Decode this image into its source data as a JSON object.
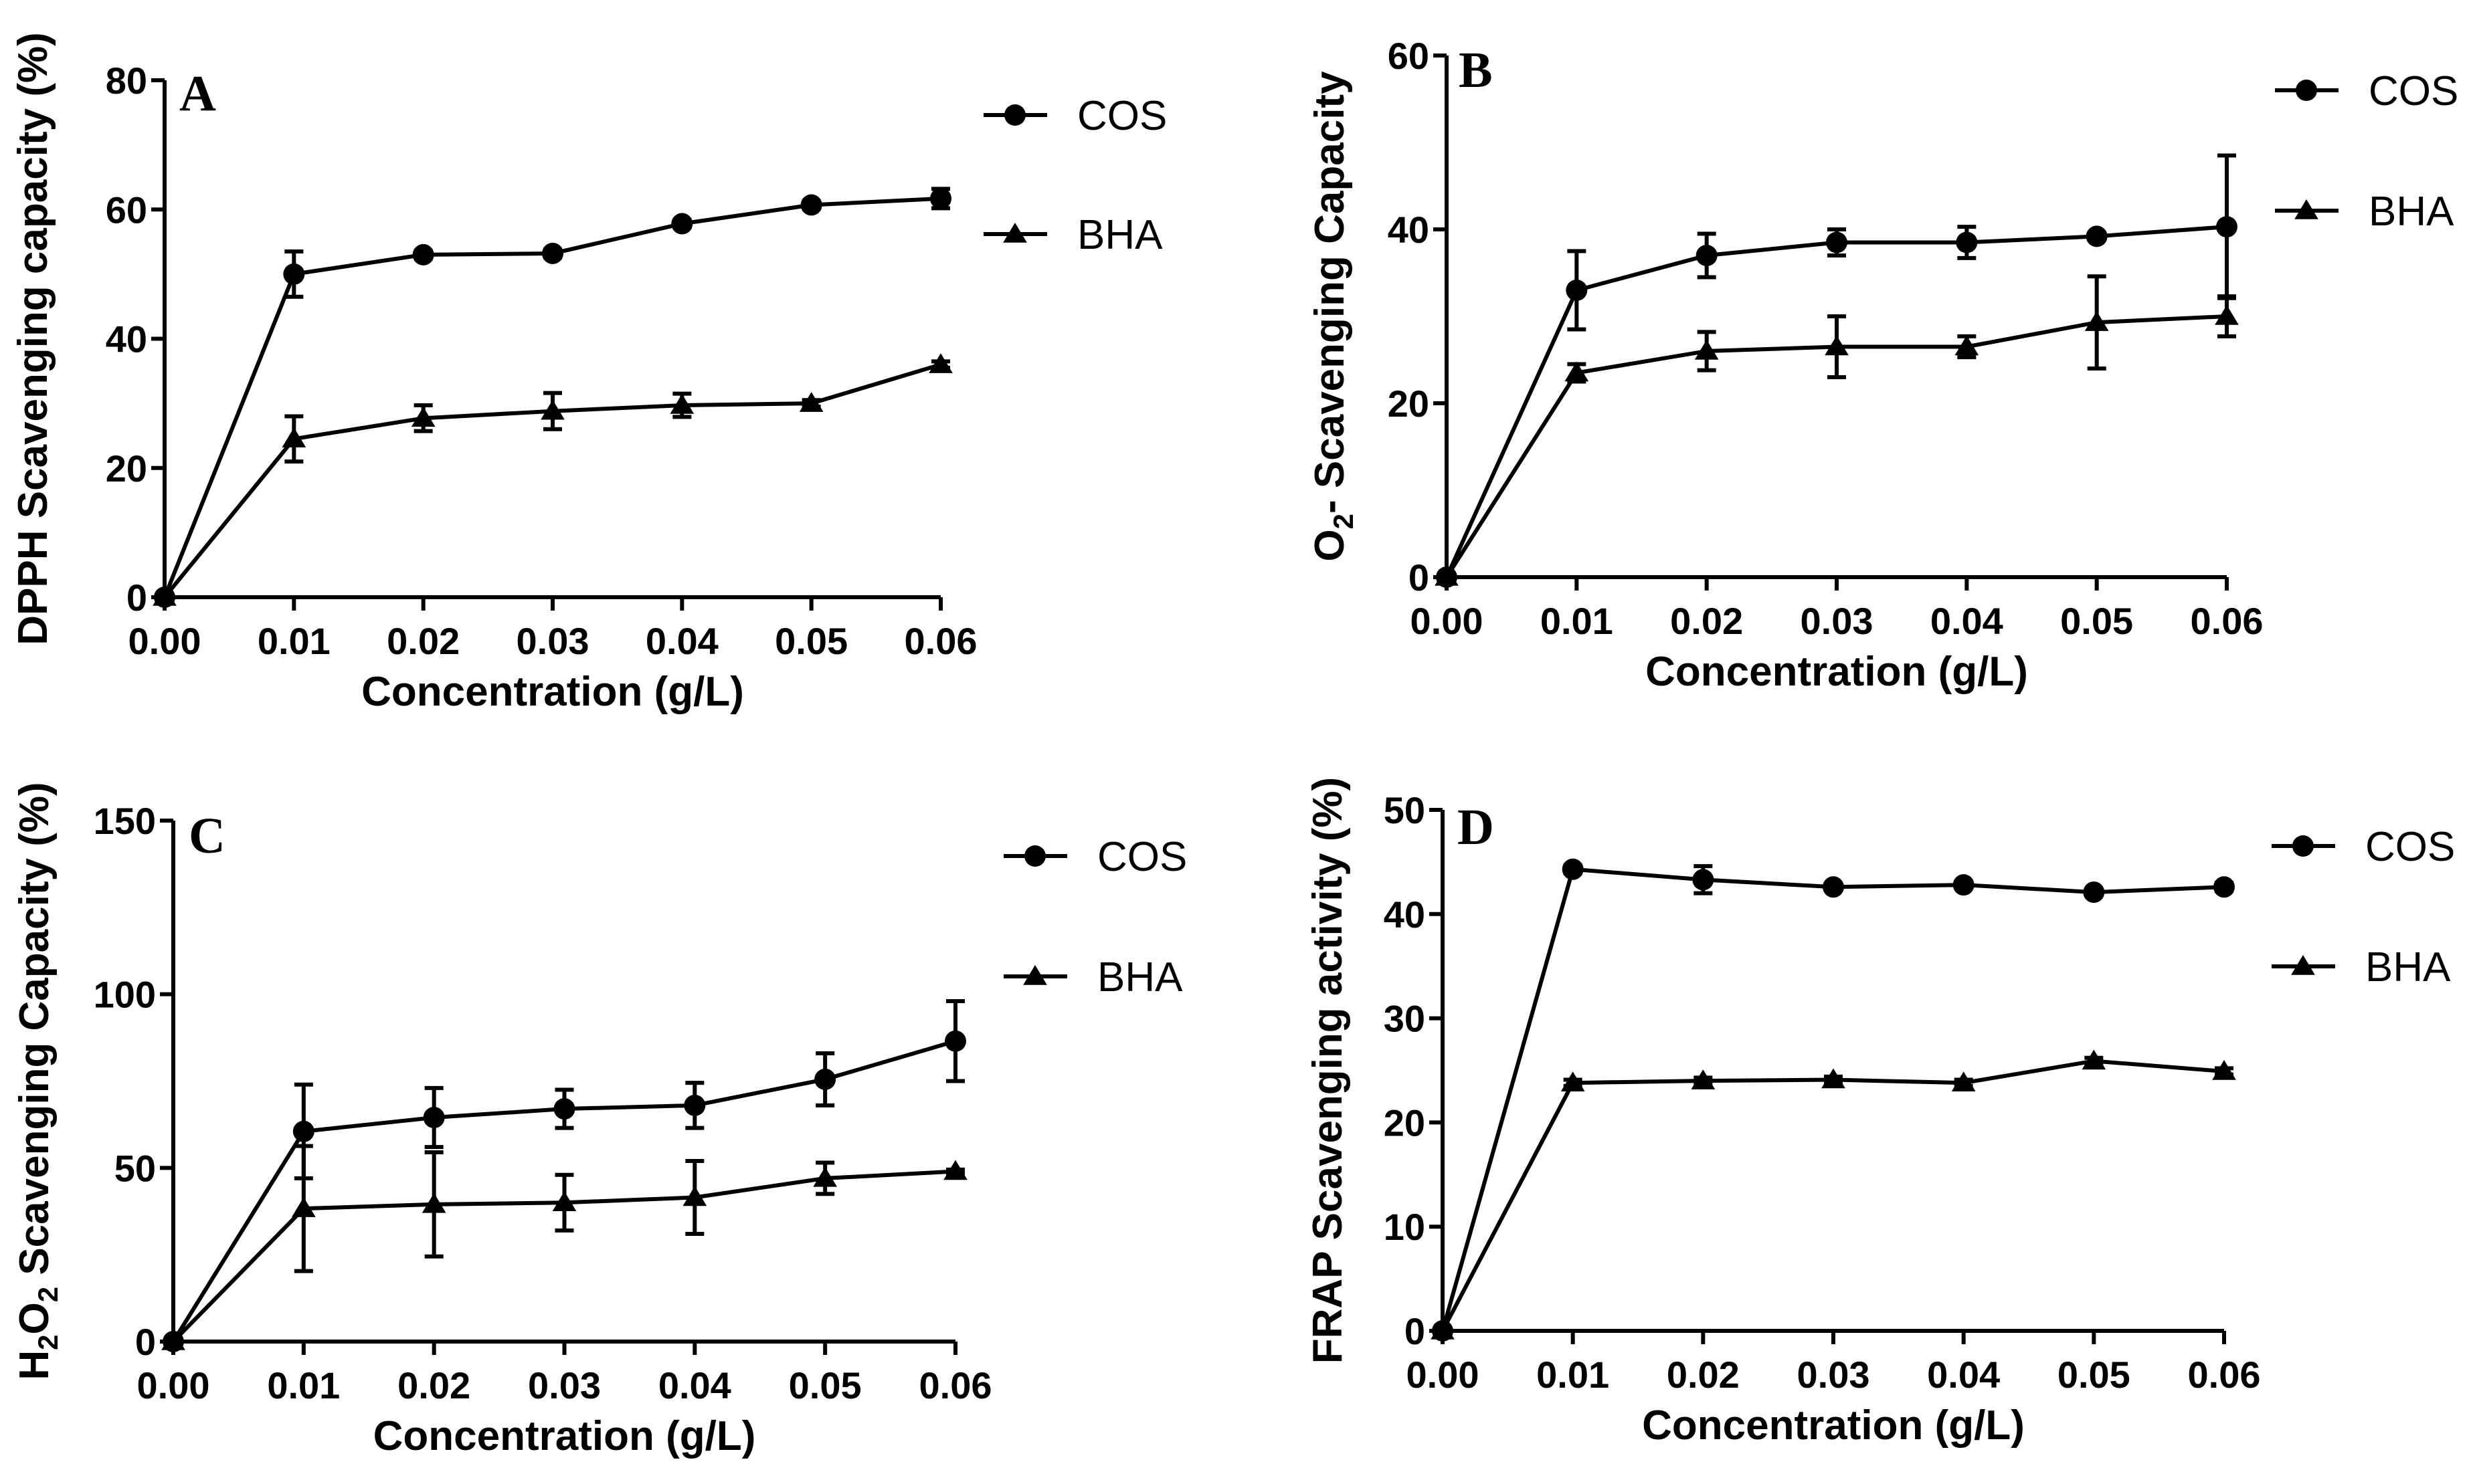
{
  "legend_labels": {
    "cos": "COS",
    "bha": "BHA"
  },
  "colors": {
    "line": "#000000",
    "background": "#ffffff"
  },
  "chart_data": [
    {
      "type": "line",
      "panel": "A",
      "title": "",
      "xlabel": "Concentration (g/L)",
      "ylabel": "DPPH Scavenging capacity (%)",
      "ylabel_parts": [
        {
          "text": "DPPH Scavenging capacity (%)",
          "sub": false
        }
      ],
      "x": [
        0.0,
        0.01,
        0.02,
        0.03,
        0.04,
        0.05,
        0.06
      ],
      "xticks": [
        "0.00",
        "0.01",
        "0.02",
        "0.03",
        "0.04",
        "0.05",
        "0.06"
      ],
      "yticks": [
        0,
        20,
        40,
        60,
        80
      ],
      "ylim": [
        0,
        80
      ],
      "legend": "top-right",
      "series": [
        {
          "name": "COS",
          "marker": "circle",
          "values": [
            0,
            50,
            53,
            53.2,
            57.8,
            60.7,
            61.7
          ],
          "err": [
            0,
            3.5,
            0.6,
            0.6,
            0.6,
            0.6,
            1.5
          ]
        },
        {
          "name": "BHA",
          "marker": "triangle",
          "values": [
            0,
            24.5,
            27.7,
            28.8,
            29.7,
            30,
            36
          ],
          "err": [
            0,
            3.5,
            2,
            2.8,
            1.8,
            0.5,
            0.5
          ]
        }
      ]
    },
    {
      "type": "line",
      "panel": "B",
      "title": "",
      "xlabel": "Concentration (g/L)",
      "ylabel": "O2- Scavenging Capacity",
      "ylabel_parts": [
        {
          "text": "O",
          "sub": false
        },
        {
          "text": "2",
          "sub": true
        },
        {
          "text": "- Scavenging Capacity",
          "sub": false
        }
      ],
      "x": [
        0.0,
        0.01,
        0.02,
        0.03,
        0.04,
        0.05,
        0.06
      ],
      "xticks": [
        "0.00",
        "0.01",
        "0.02",
        "0.03",
        "0.04",
        "0.05",
        "0.06"
      ],
      "yticks": [
        0,
        20,
        40,
        60
      ],
      "ylim": [
        0,
        60
      ],
      "legend": "top-right",
      "series": [
        {
          "name": "COS",
          "marker": "circle",
          "values": [
            0,
            33,
            37,
            38.5,
            38.5,
            39.2,
            40.3
          ],
          "err": [
            0,
            4.5,
            2.5,
            1.5,
            1.8,
            0.4,
            8.2
          ]
        },
        {
          "name": "BHA",
          "marker": "triangle",
          "values": [
            0,
            23.5,
            26,
            26.5,
            26.5,
            29.3,
            30
          ],
          "err": [
            0,
            1,
            2.2,
            3.5,
            1.2,
            5.3,
            2.3
          ]
        }
      ]
    },
    {
      "type": "line",
      "panel": "C",
      "title": "",
      "xlabel": "Concentration (g/L)",
      "ylabel": "H2O2 Scavenging Capacity (%)",
      "ylabel_parts": [
        {
          "text": "H",
          "sub": false
        },
        {
          "text": "2",
          "sub": true
        },
        {
          "text": "O",
          "sub": false
        },
        {
          "text": "2",
          "sub": true
        },
        {
          "text": " Scavenging Capacity (%)",
          "sub": false
        }
      ],
      "x": [
        0.0,
        0.01,
        0.02,
        0.03,
        0.04,
        0.05,
        0.06
      ],
      "xticks": [
        "0.00",
        "0.01",
        "0.02",
        "0.03",
        "0.04",
        "0.05",
        "0.06"
      ],
      "yticks": [
        0,
        50,
        100,
        150
      ],
      "ylim": [
        0,
        150
      ],
      "legend": "top-right",
      "series": [
        {
          "name": "COS",
          "marker": "circle",
          "values": [
            0,
            60.5,
            64.5,
            67,
            68,
            75.5,
            86.5
          ],
          "err": [
            0,
            13.5,
            8.5,
            5.5,
            6.5,
            7.5,
            11.5
          ]
        },
        {
          "name": "BHA",
          "marker": "triangle",
          "values": [
            0,
            38.3,
            39.5,
            40,
            41.5,
            47,
            49
          ],
          "err": [
            0,
            18,
            15,
            8,
            10.5,
            4.5,
            0.5
          ]
        }
      ]
    },
    {
      "type": "line",
      "panel": "D",
      "title": "",
      "xlabel": "Concentration (g/L)",
      "ylabel": "FRAP Scavenging activity (%)",
      "ylabel_parts": [
        {
          "text": "FRAP Scavenging activity (%)",
          "sub": false
        }
      ],
      "x": [
        0.0,
        0.01,
        0.02,
        0.03,
        0.04,
        0.05,
        0.06
      ],
      "xticks": [
        "0.00",
        "0.01",
        "0.02",
        "0.03",
        "0.04",
        "0.05",
        "0.06"
      ],
      "yticks": [
        0,
        10,
        20,
        30,
        40,
        50
      ],
      "ylim": [
        0,
        50
      ],
      "legend": "top-right",
      "series": [
        {
          "name": "COS",
          "marker": "circle",
          "values": [
            0,
            44.3,
            43.3,
            42.6,
            42.8,
            42.1,
            42.6
          ],
          "err": [
            0,
            0.4,
            1.3,
            0.3,
            0.3,
            0.3,
            0.4
          ]
        },
        {
          "name": "BHA",
          "marker": "triangle",
          "values": [
            0,
            23.8,
            24,
            24.1,
            23.8,
            25.9,
            24.9
          ],
          "err": [
            0,
            0.3,
            0.3,
            0.3,
            0.3,
            0.3,
            0.3
          ]
        }
      ]
    }
  ]
}
